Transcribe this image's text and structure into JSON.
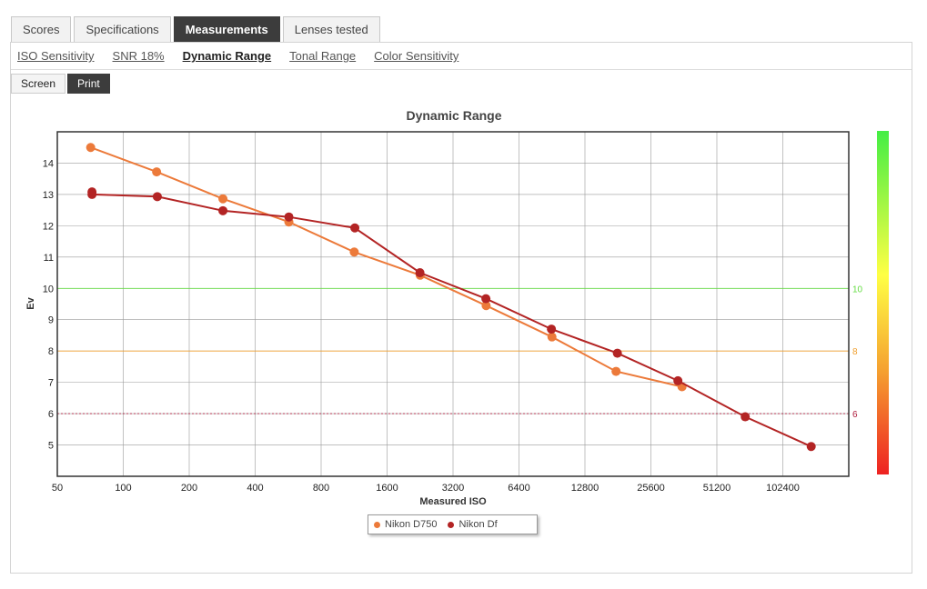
{
  "tabs": [
    {
      "label": "Scores"
    },
    {
      "label": "Specifications"
    },
    {
      "label": "Measurements"
    },
    {
      "label": "Lenses tested"
    }
  ],
  "subnav": [
    {
      "label": "ISO Sensitivity"
    },
    {
      "label": "SNR 18%"
    },
    {
      "label": "Dynamic Range"
    },
    {
      "label": "Tonal Range"
    },
    {
      "label": "Color Sensitivity"
    }
  ],
  "modes": [
    {
      "label": "Screen"
    },
    {
      "label": "Print"
    }
  ],
  "chart_data": {
    "type": "line",
    "title": "Dynamic Range",
    "xlabel": "Measured ISO",
    "ylabel": "Ev",
    "x_scale": "log2",
    "x_ticks": [
      "50",
      "100",
      "200",
      "400",
      "800",
      "1600",
      "3200",
      "6400",
      "12800",
      "25600",
      "51200",
      "102400"
    ],
    "y_ticks": [
      "5",
      "6",
      "7",
      "8",
      "9",
      "10",
      "11",
      "12",
      "13",
      "14"
    ],
    "ylim": [
      4,
      15
    ],
    "xlim": [
      50,
      204800
    ],
    "grid": true,
    "legend_position": "bottom-center",
    "reference_lines": [
      {
        "value": 10,
        "label": "10",
        "color": "#66dd44"
      },
      {
        "value": 8,
        "label": "8",
        "color": "#f0a030"
      },
      {
        "value": 6,
        "label": "6",
        "color": "#b02040"
      }
    ],
    "colorbar": {
      "top_color": "#44ee44",
      "mid_color": "#ffff44",
      "bottom_color": "#ee2222"
    },
    "series": [
      {
        "name": "Nikon D750",
        "color": "#ec7a3a",
        "points": [
          [
            71,
            14.5
          ],
          [
            142,
            13.72
          ],
          [
            285,
            12.86
          ],
          [
            570,
            12.12
          ],
          [
            1133,
            11.16
          ],
          [
            2265,
            10.42
          ],
          [
            4532,
            9.45
          ],
          [
            9050,
            8.45
          ],
          [
            17750,
            7.35
          ],
          [
            35500,
            6.86
          ]
        ]
      },
      {
        "name": "Nikon Df",
        "color": "#b32424",
        "points": [
          [
            72,
            13.08
          ],
          [
            72,
            13.0
          ],
          [
            143,
            12.93
          ],
          [
            285,
            12.48
          ],
          [
            570,
            12.28
          ],
          [
            1140,
            11.93
          ],
          [
            2260,
            10.5
          ],
          [
            4520,
            9.67
          ],
          [
            9000,
            8.7
          ],
          [
            18000,
            7.93
          ],
          [
            34000,
            7.05
          ],
          [
            69000,
            5.9
          ],
          [
            138000,
            4.95
          ]
        ]
      }
    ]
  }
}
